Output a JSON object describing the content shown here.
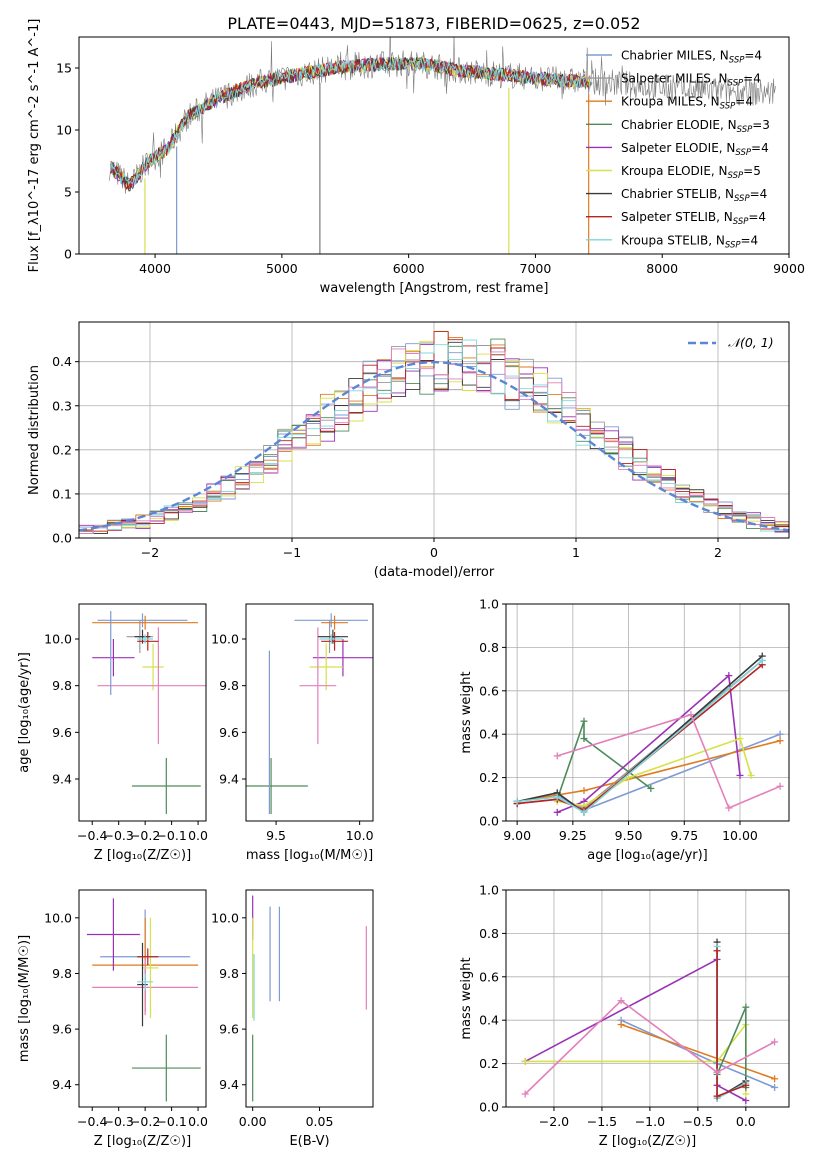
{
  "figure": {
    "title": "PLATE=0443, MJD=51873, FIBERID=0625, z=0.052"
  },
  "palette": {
    "Chabrier MILES": "#7f9ad4",
    "Salpeter MILES": "#9a9a9a",
    "Kroupa MILES": "#e07a1f",
    "Chabrier ELODIE": "#4f8a5b",
    "Salpeter ELODIE": "#9b32b6",
    "Kroupa ELODIE": "#d8e04a",
    "Chabrier STELIB": "#3a3a3a",
    "Salpeter STELIB": "#b52323",
    "Kroupa STELIB": "#7fd6dc",
    "Pink": "#e37fbb",
    "Normal": "#5b86d6"
  },
  "chart_data": [
    {
      "id": "spectrum",
      "type": "line",
      "xlabel": "wavelength [Angstrom, rest frame]",
      "ylabel": "Flux [f_λ10^-17 erg cm^-2 s^-1 A^-1]",
      "xlim": [
        3400,
        9000
      ],
      "ylim": [
        0,
        17.5
      ],
      "xticks": [
        4000,
        5000,
        6000,
        7000,
        8000,
        9000
      ],
      "yticks": [
        0,
        5,
        10,
        15
      ],
      "legend_position": "right",
      "series": [
        {
          "name": "Chabrier MILES, N_SSP=4"
        },
        {
          "name": "Salpeter MILES, N_SSP=4"
        },
        {
          "name": "Kroupa MILES, N_SSP=4"
        },
        {
          "name": "Chabrier ELODIE, N_SSP=3"
        },
        {
          "name": "Salpeter ELODIE, N_SSP=4"
        },
        {
          "name": "Kroupa ELODIE, N_SSP=5"
        },
        {
          "name": "Chabrier STELIB, N_SSP=4"
        },
        {
          "name": "Salpeter STELIB, N_SSP=4"
        },
        {
          "name": "Kroupa STELIB, N_SSP=4"
        }
      ],
      "data_envelope": {
        "x": [
          3650,
          3800,
          3950,
          4100,
          4250,
          4400,
          4600,
          4800,
          5000,
          5200,
          5400,
          5600,
          5800,
          6000,
          6200,
          6400,
          6600,
          6800,
          7000,
          7200,
          7400,
          7600,
          7800,
          8000,
          8200,
          8400,
          8600,
          8800
        ],
        "y": [
          7.0,
          5.5,
          7.5,
          8.5,
          11.0,
          12.0,
          13.0,
          13.8,
          14.2,
          14.6,
          15.0,
          15.2,
          15.3,
          15.4,
          15.2,
          14.8,
          14.6,
          14.4,
          14.2,
          14.0,
          13.9,
          13.8,
          13.6,
          13.4,
          13.3,
          13.2,
          13.1,
          13.0
        ]
      },
      "drops": [
        3920,
        4170,
        5300,
        6790,
        7420
      ]
    },
    {
      "id": "residual-hist",
      "type": "line",
      "xlabel": "(data-model)/error",
      "ylabel": "Normed distribution",
      "xlim": [
        -2.5,
        2.5
      ],
      "ylim": [
        0,
        0.49
      ],
      "xticks": [
        -2,
        -1,
        0,
        1,
        2
      ],
      "yticks": [
        0,
        0.1,
        0.2,
        0.3,
        0.4
      ],
      "legend": "𝒩(0, 1)",
      "grid": true
    },
    {
      "id": "age-vs-Z",
      "type": "scatter",
      "xlabel": "Z [log₁₀(Z/Z☉)]",
      "ylabel": "age  [log₁₀(age/yr)]",
      "xlim": [
        -0.45,
        0.03
      ],
      "ylim": [
        9.22,
        10.15
      ],
      "xticks": [
        -0.4,
        -0.3,
        -0.2,
        -0.1,
        0.0
      ],
      "yticks": [
        9.4,
        9.6,
        9.8,
        10.0
      ],
      "points": [
        {
          "series": "Chabrier MILES",
          "x": -0.21,
          "xerr": 0.17,
          "y": 10.08,
          "yerr": 0.03
        },
        {
          "series": "Salpeter MILES",
          "x": -0.22,
          "xerr": 0.05,
          "y": 10.01,
          "yerr": 0.07
        },
        {
          "series": "Kroupa MILES",
          "x": -0.2,
          "xerr": 0.2,
          "y": 10.07,
          "yerr": 0.03
        },
        {
          "series": "Salpeter ELODIE",
          "x": -0.32,
          "xerr": 0.08,
          "y": 9.92,
          "yerr": 0.08
        },
        {
          "series": "Kroupa ELODIE",
          "x": -0.17,
          "xerr": 0.04,
          "y": 9.88,
          "yerr": 0.1
        },
        {
          "series": "Pink",
          "x": -0.15,
          "xerr": 0.23,
          "y": 9.8,
          "yerr": 0.25
        },
        {
          "series": "Chabrier ELODIE",
          "x": -0.12,
          "xerr": 0.13,
          "y": 9.37,
          "yerr": 0.12
        },
        {
          "series": "Chabrier STELIB",
          "x": -0.21,
          "xerr": 0.03,
          "y": 10.01,
          "yerr": 0.03
        },
        {
          "series": "Salpeter STELIB",
          "x": -0.19,
          "xerr": 0.04,
          "y": 9.99,
          "yerr": 0.04
        },
        {
          "series": "Kroupa STELIB",
          "x": -0.2,
          "xerr": 0.03,
          "y": 10.0,
          "yerr": 0.02
        },
        {
          "series": "Chabrier MILES",
          "x": -0.33,
          "xerr": 0.0,
          "y": 9.94,
          "yerr": 0.18
        }
      ]
    },
    {
      "id": "age-vs-mass",
      "type": "scatter",
      "xlabel": "mass [log₁₀(M/M☉)]",
      "xlim": [
        9.32,
        10.08
      ],
      "ylim": [
        9.22,
        10.15
      ],
      "xticks": [
        9.5,
        10.0
      ],
      "yticks": [
        9.4,
        9.6,
        9.8,
        10.0
      ],
      "points": [
        {
          "series": "Chabrier MILES",
          "x": 9.83,
          "xerr": 0.22,
          "y": 10.08,
          "yerr": 0.03
        },
        {
          "series": "Salpeter MILES",
          "x": 9.82,
          "xerr": 0.06,
          "y": 10.01,
          "yerr": 0.07
        },
        {
          "series": "Kroupa MILES",
          "x": 9.85,
          "xerr": 0.08,
          "y": 10.07,
          "yerr": 0.03
        },
        {
          "series": "Salpeter ELODIE",
          "x": 9.9,
          "xerr": 0.18,
          "y": 9.92,
          "yerr": 0.08
        },
        {
          "series": "Kroupa ELODIE",
          "x": 9.8,
          "xerr": 0.1,
          "y": 9.88,
          "yerr": 0.1
        },
        {
          "series": "Pink",
          "x": 9.75,
          "xerr": 0.11,
          "y": 9.8,
          "yerr": 0.25
        },
        {
          "series": "Chabrier ELODIE",
          "x": 9.47,
          "xerr": 0.22,
          "y": 9.37,
          "yerr": 0.12
        },
        {
          "series": "Chabrier STELIB",
          "x": 9.84,
          "xerr": 0.09,
          "y": 10.01,
          "yerr": 0.03
        },
        {
          "series": "Salpeter STELIB",
          "x": 9.85,
          "xerr": 0.08,
          "y": 9.99,
          "yerr": 0.04
        },
        {
          "series": "Kroupa STELIB",
          "x": 9.83,
          "xerr": 0.07,
          "y": 10.0,
          "yerr": 0.02
        },
        {
          "series": "Chabrier MILES",
          "x": 9.46,
          "xerr": 0.0,
          "y": 9.6,
          "yerr": 0.35
        }
      ]
    },
    {
      "id": "mass-weight-vs-age",
      "type": "line",
      "xlabel": "age  [log₁₀(age/yr)]",
      "ylabel": "mass weight",
      "xlim": [
        8.95,
        10.22
      ],
      "ylim": [
        0,
        1.0
      ],
      "xticks": [
        9.0,
        9.25,
        9.5,
        9.75,
        10.0
      ],
      "yticks": [
        0.0,
        0.2,
        0.4,
        0.6,
        0.8,
        1.0
      ],
      "grid": true,
      "series": [
        {
          "series": "Chabrier MILES",
          "x": [
            9.0,
            9.18,
            9.3,
            10.18
          ],
          "y": [
            0.09,
            0.12,
            0.05,
            0.4
          ]
        },
        {
          "series": "Salpeter MILES",
          "x": [
            9.0,
            9.18,
            9.3,
            10.1
          ],
          "y": [
            0.08,
            0.1,
            0.06,
            0.74
          ]
        },
        {
          "series": "Kroupa MILES",
          "x": [
            9.0,
            9.18,
            9.3,
            10.18
          ],
          "y": [
            0.09,
            0.12,
            0.14,
            0.37
          ]
        },
        {
          "series": "Chabrier ELODIE",
          "x": [
            9.18,
            9.3,
            9.3,
            9.6
          ],
          "y": [
            0.1,
            0.46,
            0.38,
            0.15
          ]
        },
        {
          "series": "Salpeter ELODIE",
          "x": [
            9.18,
            9.3,
            9.95,
            10.0
          ],
          "y": [
            0.04,
            0.09,
            0.67,
            0.21
          ]
        },
        {
          "series": "Kroupa ELODIE",
          "x": [
            9.18,
            9.3,
            9.5,
            10.0,
            10.05
          ],
          "y": [
            0.09,
            0.07,
            0.2,
            0.38,
            0.21
          ]
        },
        {
          "series": "Chabrier STELIB",
          "x": [
            9.0,
            9.18,
            9.3,
            10.1
          ],
          "y": [
            0.09,
            0.13,
            0.04,
            0.76
          ]
        },
        {
          "series": "Salpeter STELIB",
          "x": [
            9.0,
            9.18,
            9.3,
            10.1
          ],
          "y": [
            0.08,
            0.1,
            0.05,
            0.72
          ]
        },
        {
          "series": "Kroupa STELIB",
          "x": [
            9.0,
            9.18,
            9.3,
            10.1
          ],
          "y": [
            0.09,
            0.11,
            0.04,
            0.74
          ]
        },
        {
          "series": "Pink",
          "x": [
            9.18,
            9.78,
            9.95,
            10.18
          ],
          "y": [
            0.3,
            0.49,
            0.06,
            0.16
          ]
        }
      ]
    },
    {
      "id": "mass-vs-Z",
      "type": "scatter",
      "xlabel": "Z [log₁₀(Z/Z☉)]",
      "ylabel": "mass [log₁₀(M/M☉)]",
      "xlim": [
        -0.45,
        0.03
      ],
      "ylim": [
        9.32,
        10.1
      ],
      "xticks": [
        -0.4,
        -0.3,
        -0.2,
        -0.1,
        0.0
      ],
      "yticks": [
        9.4,
        9.6,
        9.8,
        10.0
      ],
      "points": [
        {
          "series": "Chabrier MILES",
          "x": -0.2,
          "xerr": 0.17,
          "y": 9.86,
          "yerr": 0.17
        },
        {
          "series": "Kroupa MILES",
          "x": -0.2,
          "xerr": 0.2,
          "y": 9.83,
          "yerr": 0.17
        },
        {
          "series": "Salpeter ELODIE",
          "x": -0.32,
          "xerr": 0.1,
          "y": 9.94,
          "yerr": 0.13
        },
        {
          "series": "Pink",
          "x": -0.2,
          "xerr": 0.2,
          "y": 9.75,
          "yerr": 0.1
        },
        {
          "series": "Kroupa ELODIE",
          "x": -0.18,
          "xerr": 0.03,
          "y": 9.82,
          "yerr": 0.18
        },
        {
          "series": "Chabrier ELODIE",
          "x": -0.12,
          "xerr": 0.13,
          "y": 9.46,
          "yerr": 0.12
        },
        {
          "series": "Chabrier STELIB",
          "x": -0.21,
          "xerr": 0.02,
          "y": 9.76,
          "yerr": 0.15
        },
        {
          "series": "Salpeter STELIB",
          "x": -0.19,
          "xerr": 0.04,
          "y": 9.86,
          "yerr": 0.03
        },
        {
          "series": "Kroupa STELIB",
          "x": -0.2,
          "xerr": 0.03,
          "y": 9.77,
          "yerr": 0.03
        }
      ]
    },
    {
      "id": "mass-vs-EBV",
      "type": "scatter",
      "xlabel": "E(B-V)",
      "xlim": [
        -0.005,
        0.09
      ],
      "ylim": [
        9.32,
        10.1
      ],
      "xticks": [
        0.0,
        0.05
      ],
      "yticks": [
        9.4,
        9.6,
        9.8,
        10.0
      ],
      "points": [
        {
          "series": "Salpeter ELODIE",
          "x": 0.0,
          "y": 10.0,
          "yerr": 0.08
        },
        {
          "series": "Kroupa ELODIE",
          "x": 0.0,
          "y": 9.82,
          "yerr": 0.18
        },
        {
          "series": "Chabrier MILES",
          "x": 0.013,
          "y": 9.87,
          "yerr": 0.17
        },
        {
          "series": "Chabrier MILES",
          "x": 0.02,
          "y": 9.87,
          "yerr": 0.17
        },
        {
          "series": "Chabrier ELODIE",
          "x": 0.0,
          "y": 9.46,
          "yerr": 0.12
        },
        {
          "series": "Kroupa STELIB",
          "x": 0.001,
          "y": 9.75,
          "yerr": 0.12
        },
        {
          "series": "Pink",
          "x": 0.085,
          "y": 9.82,
          "yerr": 0.15
        }
      ]
    },
    {
      "id": "mass-weight-vs-Z",
      "type": "line",
      "xlabel": "Z [log₁₀(Z/Z☉)]",
      "ylabel": "mass weight",
      "xlim": [
        -2.5,
        0.45
      ],
      "ylim": [
        0,
        1.0
      ],
      "xticks": [
        -2.0,
        -1.5,
        -1.0,
        -0.5,
        0.0
      ],
      "yticks": [
        0.0,
        0.2,
        0.4,
        0.6,
        0.8,
        1.0
      ],
      "grid": true,
      "series": [
        {
          "series": "Chabrier MILES",
          "x": [
            -1.3,
            -0.3,
            0.3
          ],
          "y": [
            0.4,
            0.2,
            0.09
          ]
        },
        {
          "series": "Kroupa MILES",
          "x": [
            -1.3,
            0.3
          ],
          "y": [
            0.38,
            0.13
          ]
        },
        {
          "series": "Salpeter ELODIE",
          "x": [
            -2.3,
            -0.3,
            -0.3,
            0.0
          ],
          "y": [
            0.21,
            0.68,
            0.1,
            0.03
          ]
        },
        {
          "series": "Kroupa ELODIE",
          "x": [
            -2.3,
            -0.3,
            0.0,
            0.0
          ],
          "y": [
            0.21,
            0.21,
            0.38,
            0.06
          ]
        },
        {
          "series": "Chabrier ELODIE",
          "x": [
            -0.3,
            0.0,
            0.0
          ],
          "y": [
            0.15,
            0.46,
            0.09
          ]
        },
        {
          "series": "Chabrier STELIB",
          "x": [
            -0.3,
            -0.3,
            0.0
          ],
          "y": [
            0.76,
            0.04,
            0.12
          ]
        },
        {
          "series": "Kroupa STELIB",
          "x": [
            -0.3,
            -0.3,
            0.0
          ],
          "y": [
            0.74,
            0.04,
            0.11
          ]
        },
        {
          "series": "Salpeter STELIB",
          "x": [
            -0.3,
            -0.3,
            0.0
          ],
          "y": [
            0.72,
            0.05,
            0.1
          ]
        },
        {
          "series": "Pink",
          "x": [
            -2.3,
            -1.3,
            -0.3,
            0.3
          ],
          "y": [
            0.06,
            0.49,
            0.16,
            0.3
          ]
        }
      ]
    }
  ]
}
